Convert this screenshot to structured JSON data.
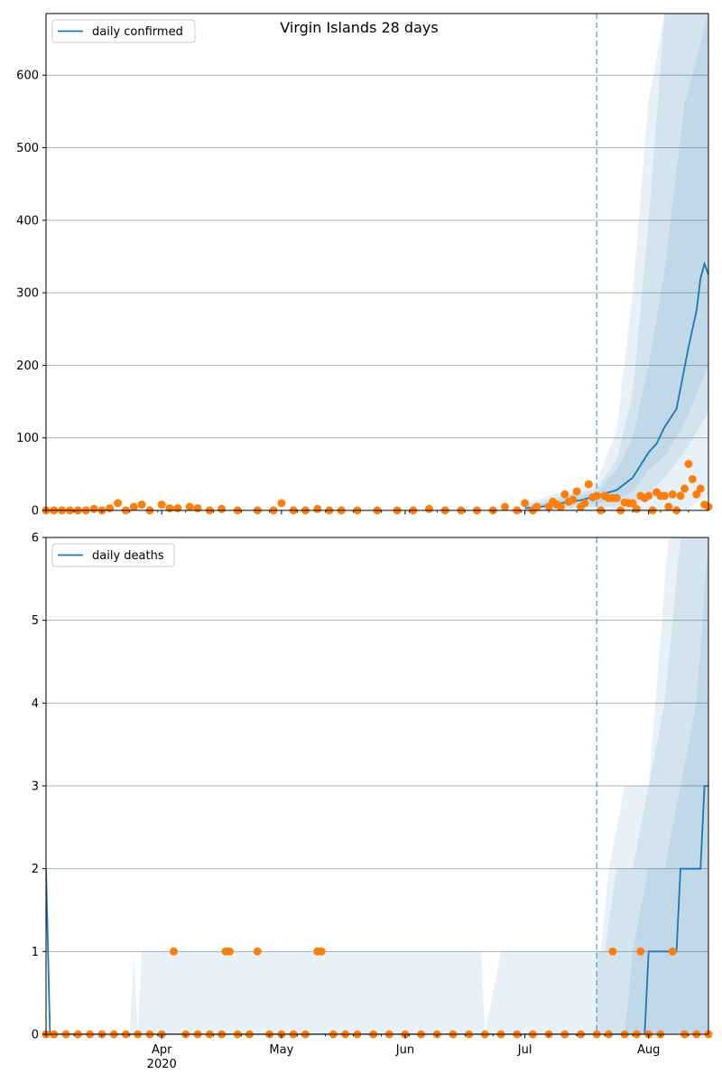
{
  "title": "Virgin Islands 28 days",
  "colors": {
    "line": "#1f77b4",
    "points": "#ff7f0e",
    "band": "#1f77b4",
    "grid": "#b0b0b0",
    "vline": "#1f77b4"
  },
  "chart_data": [
    {
      "type": "line",
      "panel": "top",
      "title": "Virgin Islands 28 days",
      "legend": "daily confirmed",
      "legend_placement": "top-left",
      "xlim": [
        "2020-03-03",
        "2020-08-16"
      ],
      "ylim": [
        0,
        685
      ],
      "yticks": [
        0,
        100,
        200,
        300,
        400,
        500,
        600
      ],
      "grid": "horizontal",
      "vline_date": "2020-07-19",
      "series": [
        {
          "x": [
            "2020-07-01",
            "2020-07-05",
            "2020-07-10",
            "2020-07-15",
            "2020-07-19",
            "2020-07-24",
            "2020-07-28",
            "2020-08-01",
            "2020-08-03",
            "2020-08-05",
            "2020-08-08",
            "2020-08-11",
            "2020-08-13",
            "2020-08-14",
            "2020-08-15",
            "2020-08-16"
          ],
          "y": [
            3,
            5,
            10,
            14,
            20,
            28,
            45,
            80,
            92,
            115,
            140,
            225,
            275,
            320,
            340,
            325
          ]
        }
      ],
      "bands": [
        {
          "x": [
            "2020-07-01",
            "2020-07-19",
            "2020-07-24",
            "2020-07-28",
            "2020-08-01",
            "2020-08-05",
            "2020-08-10",
            "2020-08-16"
          ],
          "low": [
            0,
            0,
            0,
            0,
            0,
            0,
            0,
            20
          ],
          "high": [
            10,
            40,
            110,
            300,
            565,
            685,
            685,
            685
          ]
        },
        {
          "x": [
            "2020-07-01",
            "2020-07-19",
            "2020-07-24",
            "2020-07-28",
            "2020-08-01",
            "2020-08-05",
            "2020-08-10",
            "2020-08-16"
          ],
          "low": [
            1,
            5,
            5,
            12,
            25,
            45,
            80,
            135
          ],
          "high": [
            7,
            30,
            70,
            160,
            400,
            685,
            685,
            685
          ]
        },
        {
          "x": [
            "2020-07-01",
            "2020-07-19",
            "2020-07-24",
            "2020-07-28",
            "2020-08-01",
            "2020-08-05",
            "2020-08-10",
            "2020-08-16"
          ],
          "low": [
            2,
            10,
            15,
            25,
            55,
            75,
            120,
            200
          ],
          "high": [
            5,
            25,
            55,
            100,
            200,
            330,
            560,
            685
          ]
        }
      ],
      "points": {
        "x": [
          "2020-03-03",
          "2020-03-05",
          "2020-03-07",
          "2020-03-09",
          "2020-03-11",
          "2020-03-13",
          "2020-03-15",
          "2020-03-17",
          "2020-03-19",
          "2020-03-21",
          "2020-03-23",
          "2020-03-25",
          "2020-03-27",
          "2020-03-29",
          "2020-04-01",
          "2020-04-03",
          "2020-04-05",
          "2020-04-08",
          "2020-04-10",
          "2020-04-13",
          "2020-04-16",
          "2020-04-20",
          "2020-04-25",
          "2020-04-29",
          "2020-05-01",
          "2020-05-04",
          "2020-05-07",
          "2020-05-10",
          "2020-05-13",
          "2020-05-16",
          "2020-05-20",
          "2020-05-25",
          "2020-05-30",
          "2020-06-03",
          "2020-06-07",
          "2020-06-11",
          "2020-06-15",
          "2020-06-19",
          "2020-06-23",
          "2020-06-26",
          "2020-06-29",
          "2020-07-01",
          "2020-07-03",
          "2020-07-04",
          "2020-07-07",
          "2020-07-08",
          "2020-07-09",
          "2020-07-10",
          "2020-07-11",
          "2020-07-12",
          "2020-07-13",
          "2020-07-14",
          "2020-07-15",
          "2020-07-16",
          "2020-07-17",
          "2020-07-18",
          "2020-07-19",
          "2020-07-20",
          "2020-07-21",
          "2020-07-22",
          "2020-07-23",
          "2020-07-24",
          "2020-07-25",
          "2020-07-26",
          "2020-07-27",
          "2020-07-28",
          "2020-07-29",
          "2020-07-30",
          "2020-07-31",
          "2020-08-01",
          "2020-08-02",
          "2020-08-03",
          "2020-08-04",
          "2020-08-05",
          "2020-08-06",
          "2020-08-07",
          "2020-08-08",
          "2020-08-09",
          "2020-08-10",
          "2020-08-11",
          "2020-08-12",
          "2020-08-13",
          "2020-08-14",
          "2020-08-15",
          "2020-08-16"
        ],
        "y": [
          0,
          0,
          0,
          0,
          0,
          0,
          2,
          0,
          3,
          10,
          0,
          5,
          8,
          0,
          8,
          3,
          3,
          5,
          3,
          0,
          2,
          0,
          0,
          0,
          10,
          0,
          0,
          2,
          0,
          0,
          0,
          0,
          0,
          0,
          2,
          0,
          0,
          0,
          0,
          5,
          0,
          10,
          0,
          5,
          5,
          12,
          8,
          5,
          22,
          12,
          15,
          26,
          5,
          10,
          36,
          18,
          20,
          0,
          20,
          17,
          17,
          17,
          0,
          11,
          10,
          10,
          2,
          20,
          17,
          20,
          0,
          25,
          20,
          20,
          5,
          22,
          0,
          20,
          30,
          64,
          43,
          22,
          30,
          8,
          5
        ]
      }
    },
    {
      "type": "line",
      "panel": "bottom",
      "legend": "daily deaths",
      "legend_placement": "top-left",
      "xlim": [
        "2020-03-03",
        "2020-08-16"
      ],
      "ylim": [
        0,
        6
      ],
      "yticks": [
        0,
        1,
        2,
        3,
        4,
        5,
        6
      ],
      "grid": "horizontal",
      "vline_date": "2020-07-19",
      "xticks": [
        {
          "date": "2020-04-01",
          "label": "Apr",
          "sub": "2020"
        },
        {
          "date": "2020-05-01",
          "label": "May",
          "sub": ""
        },
        {
          "date": "2020-06-01",
          "label": "Jun",
          "sub": ""
        },
        {
          "date": "2020-07-01",
          "label": "Jul",
          "sub": ""
        },
        {
          "date": "2020-08-01",
          "label": "Aug",
          "sub": ""
        }
      ],
      "series": [
        {
          "x": [
            "2020-03-03",
            "2020-03-04",
            "2020-07-31",
            "2020-08-01",
            "2020-08-02",
            "2020-08-08",
            "2020-08-09",
            "2020-08-14",
            "2020-08-15",
            "2020-08-16"
          ],
          "y": [
            2,
            0,
            0,
            1,
            1,
            1,
            2,
            2,
            3,
            3
          ]
        }
      ],
      "bands": [
        {
          "x": [
            "2020-03-24",
            "2020-03-25",
            "2020-03-26",
            "2020-03-27",
            "2020-06-20",
            "2020-06-21",
            "2020-06-25",
            "2020-07-20",
            "2020-07-22",
            "2020-07-26",
            "2020-08-01",
            "2020-08-06",
            "2020-08-16"
          ],
          "low": [
            0,
            0,
            0,
            0,
            0,
            0,
            0,
            0,
            0,
            0,
            0,
            0,
            0
          ],
          "high": [
            0,
            1,
            0,
            1,
            1,
            0,
            1,
            1,
            2,
            3,
            3,
            6,
            6
          ]
        },
        {
          "x": [
            "2020-07-19",
            "2020-07-21",
            "2020-07-24",
            "2020-07-28",
            "2020-08-01",
            "2020-08-05",
            "2020-08-09",
            "2020-08-16"
          ],
          "low": [
            0,
            0,
            0,
            0,
            0,
            0,
            0,
            0
          ],
          "high": [
            1,
            1,
            2,
            2,
            3,
            4,
            6,
            6
          ]
        },
        {
          "x": [
            "2020-07-26",
            "2020-07-28",
            "2020-08-01",
            "2020-08-05",
            "2020-08-09",
            "2020-08-13",
            "2020-08-16"
          ],
          "low": [
            0,
            0,
            0,
            0,
            0,
            0,
            0
          ],
          "high": [
            0,
            1,
            2,
            2,
            3,
            4,
            6
          ]
        }
      ],
      "points": {
        "x": [
          "2020-03-03",
          "2020-03-05",
          "2020-03-08",
          "2020-03-11",
          "2020-03-14",
          "2020-03-17",
          "2020-03-20",
          "2020-03-23",
          "2020-03-26",
          "2020-03-29",
          "2020-04-01",
          "2020-04-04",
          "2020-04-07",
          "2020-04-10",
          "2020-04-13",
          "2020-04-16",
          "2020-04-17",
          "2020-04-18",
          "2020-04-20",
          "2020-04-23",
          "2020-04-25",
          "2020-04-28",
          "2020-05-01",
          "2020-05-04",
          "2020-05-07",
          "2020-05-10",
          "2020-05-11",
          "2020-05-14",
          "2020-05-17",
          "2020-05-20",
          "2020-05-24",
          "2020-05-28",
          "2020-06-01",
          "2020-06-05",
          "2020-06-09",
          "2020-06-13",
          "2020-06-17",
          "2020-06-21",
          "2020-06-25",
          "2020-06-29",
          "2020-07-03",
          "2020-07-07",
          "2020-07-11",
          "2020-07-15",
          "2020-07-19",
          "2020-07-22",
          "2020-07-23",
          "2020-07-26",
          "2020-07-29",
          "2020-07-30",
          "2020-08-01",
          "2020-08-04",
          "2020-08-07",
          "2020-08-10",
          "2020-08-13",
          "2020-08-16"
        ],
        "y": [
          0,
          0,
          0,
          0,
          0,
          0,
          0,
          0,
          0,
          0,
          0,
          1,
          0,
          0,
          0,
          0,
          1,
          1,
          0,
          0,
          1,
          0,
          0,
          0,
          0,
          1,
          1,
          0,
          0,
          0,
          0,
          0,
          0,
          0,
          0,
          0,
          0,
          0,
          0,
          0,
          0,
          0,
          0,
          0,
          0,
          0,
          1,
          0,
          0,
          1,
          0,
          0,
          1,
          0,
          0,
          0
        ]
      }
    }
  ]
}
